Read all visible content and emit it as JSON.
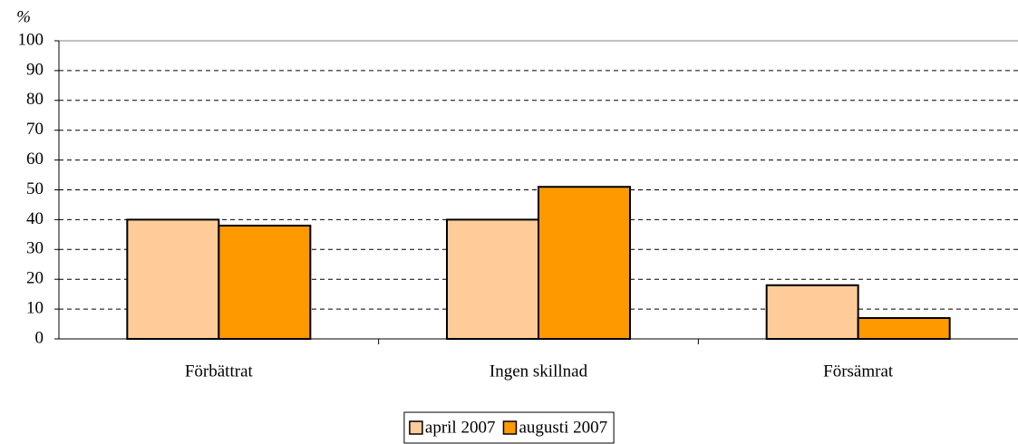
{
  "chart_data": {
    "type": "bar",
    "y_label": "%",
    "categories": [
      "Förbättrat",
      "Ingen skillnad",
      "Försämrat"
    ],
    "series": [
      {
        "name": "april 2007",
        "color": "#FFCC99",
        "values": [
          40,
          40,
          18
        ]
      },
      {
        "name": "augusti 2007",
        "color": "#FF9900",
        "values": [
          38,
          51,
          7
        ]
      }
    ],
    "ylim": [
      0,
      100
    ],
    "yticks": [
      0,
      10,
      20,
      30,
      40,
      50,
      60,
      70,
      80,
      90,
      100
    ],
    "grid": true,
    "legend": "bottom"
  }
}
